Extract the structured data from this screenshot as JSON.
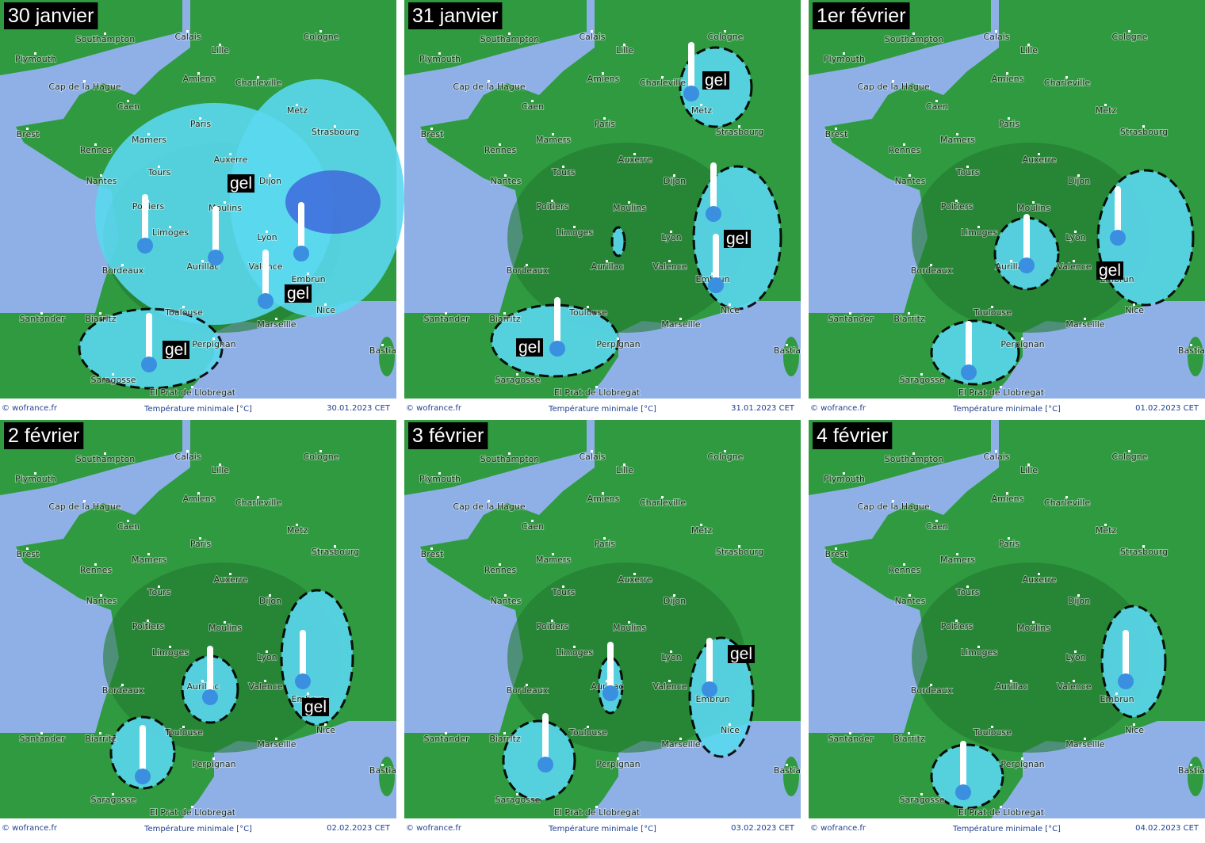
{
  "cities": [
    "Southampton",
    "Plymouth",
    "Calais",
    "Lille",
    "Cologne",
    "Cap de la Hague",
    "Amiens",
    "Charleville",
    "Caen",
    "Metz",
    "Paris",
    "Brest",
    "Mamers",
    "Strasbourg",
    "Rennes",
    "Auxerre",
    "Tours",
    "Nantes",
    "Dijon",
    "Poitiers",
    "Moulins",
    "Limoges",
    "Lyon",
    "Bordeaux",
    "Aurillac",
    "Valence",
    "Embrun",
    "Nice",
    "Marseille",
    "Toulouse",
    "Santander",
    "Biarritz",
    "Perpignan",
    "Bastia",
    "Saragosse",
    "El Prat de Llobregat"
  ],
  "footer": {
    "source": "© wofrance.fr",
    "variable": "Température minimale [°C]"
  },
  "panels": [
    {
      "title": "30 janvier",
      "date": "30.01.2023 CET",
      "gel": [
        "gel",
        "gel",
        "gel"
      ]
    },
    {
      "title": "31 janvier",
      "date": "31.01.2023 CET",
      "gel": [
        "gel",
        "gel",
        "gel"
      ]
    },
    {
      "title": "1er février",
      "date": "01.02.2023 CET",
      "gel": [
        "gel"
      ]
    },
    {
      "title": "2 février",
      "date": "02.02.2023 CET",
      "gel": [
        "gel"
      ]
    },
    {
      "title": "3 février",
      "date": "03.02.2023 CET",
      "gel": [
        "gel"
      ]
    },
    {
      "title": "4 février",
      "date": "04.02.2023 CET",
      "gel": []
    }
  ]
}
